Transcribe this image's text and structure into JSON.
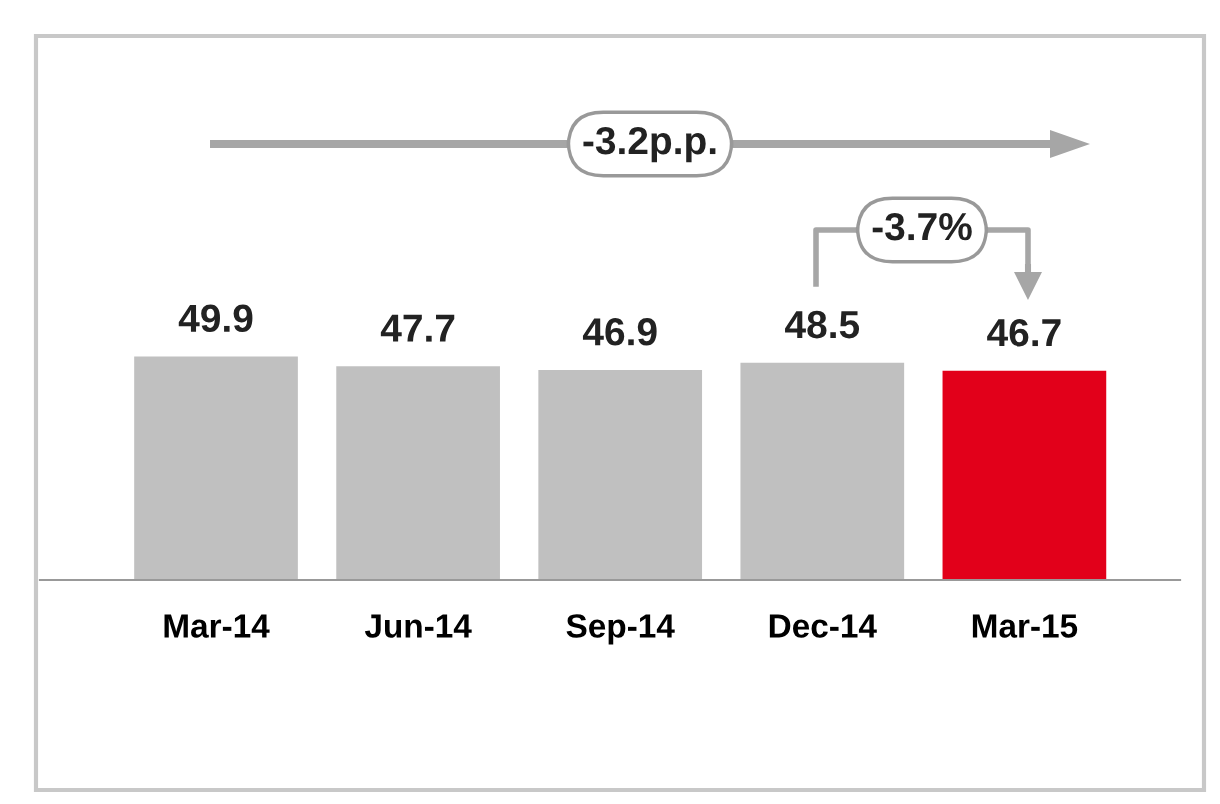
{
  "chart_data": {
    "type": "bar",
    "categories": [
      "Mar-14",
      "Jun-14",
      "Sep-14",
      "Dec-14",
      "Mar-15"
    ],
    "values": [
      49.9,
      47.7,
      46.9,
      48.5,
      46.7
    ],
    "colors": [
      "#c0c0c0",
      "#c0c0c0",
      "#c0c0c0",
      "#c0c0c0",
      "#e2001a"
    ],
    "data_labels": true,
    "annotations": [
      "-3.2p.p.",
      "-3.7%"
    ]
  }
}
